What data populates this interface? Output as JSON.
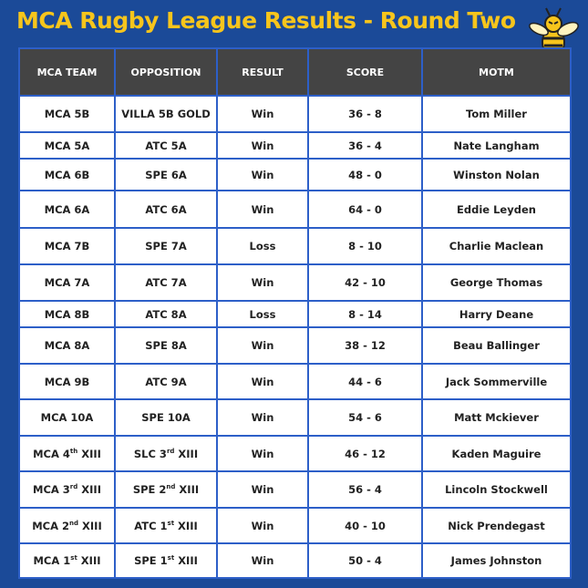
{
  "header": {
    "title": "MCA Rugby League Results - Round Two"
  },
  "table": {
    "headers": [
      "MCA TEAM",
      "OPPOSITION",
      "RESULT",
      "SCORE",
      "MOTM"
    ],
    "rows": [
      [
        "MCA 5B",
        "VILLA 5B GOLD",
        "Win",
        "36 - 8",
        "Tom Miller"
      ],
      [
        "MCA 5A",
        "ATC 5A",
        "Win",
        "36 - 4",
        "Nate Langham"
      ],
      [
        "MCA 6B",
        "SPE 6A",
        "Win",
        "48 - 0",
        "Winston Nolan"
      ],
      [
        "MCA 6A",
        "ATC 6A",
        "Win",
        "64 - 0",
        "Eddie Leyden"
      ],
      [
        "MCA 7B",
        "SPE 7A",
        "Loss",
        "8 - 10",
        "Charlie Maclean"
      ],
      [
        "MCA 7A",
        "ATC 7A",
        "Win",
        "42 - 10",
        "George Thomas"
      ],
      [
        "MCA 8B",
        "ATC 8A",
        "Loss",
        "8 - 14",
        "Harry Deane"
      ],
      [
        "MCA 8A",
        "SPE 8A",
        "Win",
        "38 - 12",
        "Beau Ballinger"
      ],
      [
        "MCA 9B",
        "ATC 9A",
        "Win",
        "44 - 6",
        "Jack Sommerville"
      ],
      [
        "MCA 10A",
        "SPE 10A",
        "Win",
        "54 - 6",
        "Matt Mckiever"
      ],
      [
        {
          "text": "MCA 4",
          "sup": "th",
          "after": " XIII"
        },
        {
          "text": "SLC 3",
          "sup": "rd",
          "after": " XIII"
        },
        "Win",
        "46 - 12",
        "Kaden Maguire"
      ],
      [
        {
          "text": "MCA 3",
          "sup": "rd",
          "after": " XIII"
        },
        {
          "text": "SPE 2",
          "sup": "nd",
          "after": " XIII"
        },
        "Win",
        "56 - 4",
        "Lincoln Stockwell"
      ],
      [
        {
          "text": "MCA 2",
          "sup": "nd",
          "after": " XIII"
        },
        {
          "text": "ATC 1",
          "sup": "st",
          "after": " XIII"
        },
        "Win",
        "40 - 10",
        "Nick Prendegast"
      ],
      [
        {
          "text": "MCA 1",
          "sup": "st",
          "after": " XIII"
        },
        {
          "text": "SPE 1",
          "sup": "st",
          "after": " XIII"
        },
        "Win",
        "50 - 4",
        "James Johnston"
      ]
    ]
  }
}
